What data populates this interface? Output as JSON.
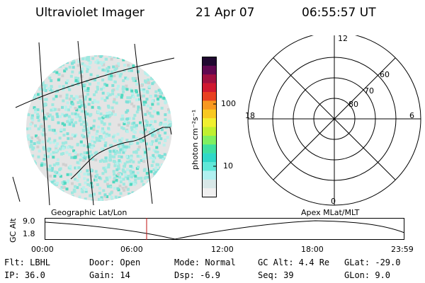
{
  "header": {
    "instrument": "Ultraviolet Imager",
    "date": "21 Apr 07",
    "time": "06:55:57 UT"
  },
  "colorbar": {
    "unit_label": "photon cm⁻²s⁻¹",
    "ticks": [
      "100",
      "10"
    ],
    "colors": [
      "#f0f0f0",
      "#d8e8e8",
      "#b0f0f0",
      "#60e8d8",
      "#30d8c8",
      "#40e0a0",
      "#80f060",
      "#c0f030",
      "#f0f030",
      "#f8c820",
      "#f89820",
      "#e84020",
      "#d01830",
      "#a01040",
      "#600850",
      "#200830"
    ]
  },
  "image_panel": {
    "fill_color": "#9ee8e0",
    "haze_color": "#e4e4e4",
    "line_color": "#000000"
  },
  "polar_plot": {
    "mlt_labels": [
      "12",
      "18",
      "6",
      "0"
    ],
    "lat_labels": [
      "60",
      "70",
      "80"
    ]
  },
  "timeline": {
    "left_label": "Geographic Lat/Lon",
    "right_label": "Apex MLat/MLT",
    "axis_label": "GC Alt",
    "y_ticks": [
      "9.0",
      "1.8"
    ],
    "x_ticks": [
      "00:00",
      "06:00",
      "12:00",
      "18:00",
      "23:59"
    ],
    "marker_color": "#c01010"
  },
  "info": {
    "filter": "Flt: LBHL",
    "ip": "IP: 36.0",
    "door": "Door: Open",
    "gain": "Gain: 14",
    "mode": "Mode: Normal",
    "dsp": "Dsp:   -6.9",
    "gc_alt": "GC Alt: 4.4 Re",
    "seq": "Seq: 39",
    "glat": "GLat: -29.0",
    "glon": "GLon:   9.0"
  }
}
